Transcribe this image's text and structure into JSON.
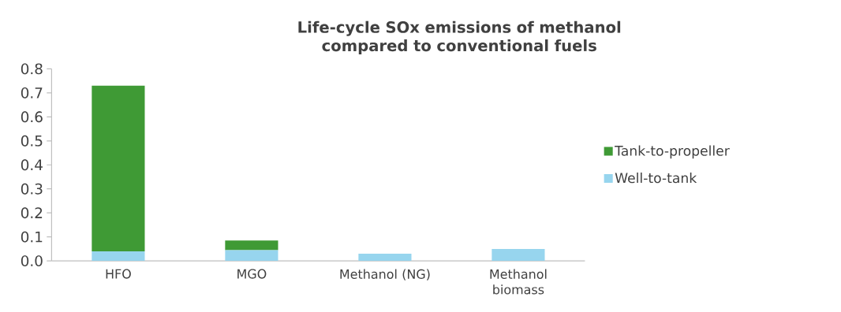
{
  "chart_data": {
    "type": "bar",
    "stacked": true,
    "title": "Life-cycle SOx emissions of methanol compared to conventional fuels",
    "categories": [
      "HFO",
      "MGO",
      "Methanol (NG)",
      "Methanol biomass"
    ],
    "series": [
      {
        "name": "Well-to-tank",
        "color": "#97d5ee",
        "values": [
          0.04,
          0.045,
          0.03,
          0.05
        ]
      },
      {
        "name": "Tank-to-propeller",
        "color": "#3f9a35",
        "values": [
          0.69,
          0.04,
          null,
          null
        ]
      }
    ],
    "ylim": [
      0,
      0.8
    ],
    "yticks": [
      {
        "value": 0,
        "label": "0.0"
      },
      0.1,
      0.2,
      0.3,
      0.4,
      0.5,
      0.6,
      0.7,
      0.8
    ],
    "legend": "right",
    "grid": false
  }
}
